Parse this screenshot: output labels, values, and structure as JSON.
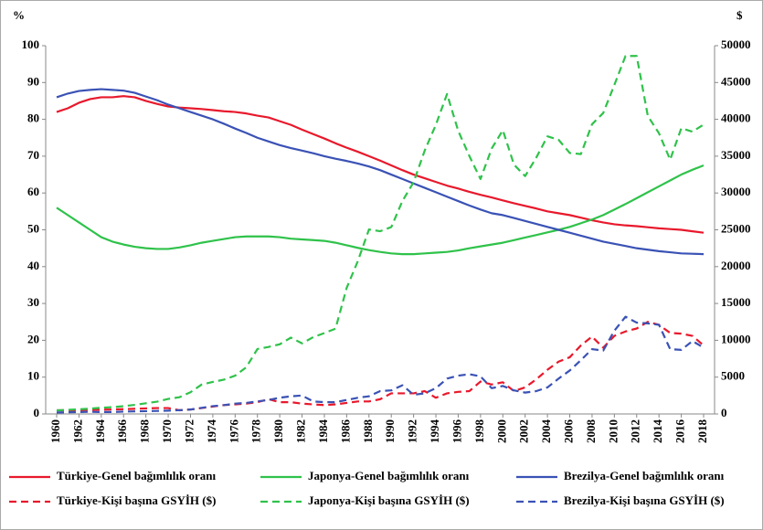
{
  "chart_data": {
    "type": "line",
    "y_label": "%",
    "y2_label": "$",
    "x": [
      1960,
      1961,
      1962,
      1963,
      1964,
      1965,
      1966,
      1967,
      1968,
      1969,
      1970,
      1971,
      1972,
      1973,
      1974,
      1975,
      1976,
      1977,
      1978,
      1979,
      1980,
      1981,
      1982,
      1983,
      1984,
      1985,
      1986,
      1987,
      1988,
      1989,
      1990,
      1991,
      1992,
      1993,
      1994,
      1995,
      1996,
      1997,
      1998,
      1999,
      2000,
      2001,
      2002,
      2003,
      2004,
      2005,
      2006,
      2007,
      2008,
      2009,
      2010,
      2011,
      2012,
      2013,
      2014,
      2015,
      2016,
      2017,
      2018
    ],
    "xlim": [
      1960,
      2018
    ],
    "xticks": [
      1960,
      1962,
      1964,
      1966,
      1968,
      1970,
      1972,
      1974,
      1976,
      1978,
      1980,
      1982,
      1984,
      1986,
      1988,
      1990,
      1992,
      1994,
      1996,
      1998,
      2000,
      2002,
      2004,
      2006,
      2008,
      2010,
      2012,
      2014,
      2016,
      2018
    ],
    "ylim": [
      0,
      100
    ],
    "yticks": [
      0,
      10,
      20,
      30,
      40,
      50,
      60,
      70,
      80,
      90,
      100
    ],
    "y2lim": [
      0,
      50000
    ],
    "y2ticks": [
      0,
      5000,
      10000,
      15000,
      20000,
      25000,
      30000,
      35000,
      40000,
      45000,
      50000
    ],
    "series": [
      {
        "name": "Türkiye-Genel bağımlılık oranı",
        "color": "#e8192c",
        "dash": false,
        "values": [
          82,
          83,
          84.5,
          85.5,
          86,
          86,
          86.3,
          86,
          85,
          84.2,
          83.5,
          83.2,
          83,
          82.8,
          82.5,
          82.2,
          82,
          81.6,
          81,
          80.5,
          79.5,
          78.5,
          77.2,
          76,
          74.8,
          73.5,
          72.3,
          71.2,
          70,
          68.8,
          67.5,
          66.2,
          65,
          64,
          63,
          62,
          61.2,
          60.3,
          59.5,
          58.8,
          58,
          57.2,
          56.5,
          55.8,
          55,
          54.5,
          54,
          53.3,
          52.6,
          52,
          51.5,
          51.2,
          51,
          50.7,
          50.4,
          50.2,
          50,
          49.6,
          49.2
        ]
      },
      {
        "name": "Japonya-Genel bağımlılık oranı",
        "color": "#2fc24a",
        "dash": false,
        "values": [
          56,
          54,
          52,
          50,
          48,
          46.8,
          46,
          45.4,
          45,
          44.8,
          44.8,
          45.2,
          45.8,
          46.5,
          47,
          47.5,
          48,
          48.2,
          48.2,
          48.2,
          48,
          47.6,
          47.4,
          47.2,
          47,
          46.5,
          45.8,
          45.1,
          44.5,
          44,
          43.6,
          43.4,
          43.4,
          43.6,
          43.8,
          44,
          44.4,
          45,
          45.5,
          46,
          46.5,
          47.2,
          47.9,
          48.6,
          49.3,
          50,
          50.8,
          51.8,
          52.8,
          54,
          55.5,
          57,
          58.6,
          60.2,
          61.8,
          63.4,
          65,
          66.3,
          67.5
        ]
      },
      {
        "name": "Brezilya-Genel bağımlılık oranı",
        "color": "#3a52b5",
        "dash": false,
        "values": [
          86,
          87,
          87.7,
          88,
          88.2,
          88,
          87.8,
          87.2,
          86.2,
          85.2,
          84,
          83,
          82,
          81,
          80,
          78.8,
          77.5,
          76.3,
          75,
          74,
          73,
          72.2,
          71.5,
          70.8,
          70,
          69.3,
          68.7,
          68,
          67.2,
          66.2,
          65,
          63.8,
          62.6,
          61.4,
          60.2,
          59,
          57.8,
          56.6,
          55.5,
          54.5,
          54,
          53.2,
          52.4,
          51.6,
          50.8,
          50,
          49.2,
          48.4,
          47.6,
          46.8,
          46.2,
          45.6,
          45,
          44.6,
          44.2,
          43.9,
          43.6,
          43.5,
          43.4
        ]
      },
      {
        "name": "Türkiye-Kişi başına GSYİH ($)",
        "color": "#e8192c",
        "dash": true,
        "axis": "y2",
        "values": [
          500,
          500,
          500,
          550,
          580,
          600,
          650,
          700,
          750,
          800,
          800,
          500,
          600,
          800,
          1000,
          1200,
          1300,
          1400,
          1600,
          2000,
          1600,
          1600,
          1400,
          1300,
          1200,
          1300,
          1500,
          1700,
          1700,
          2000,
          2800,
          2800,
          2800,
          3100,
          2200,
          2800,
          3000,
          3100,
          4400,
          4000,
          4300,
          3100,
          3600,
          4700,
          6000,
          7100,
          7700,
          9300,
          10500,
          9000,
          10600,
          11200,
          11600,
          12500,
          12100,
          11000,
          10900,
          10600,
          9300
        ]
      },
      {
        "name": "Japonya-Kişi başına GSYİH ($)",
        "color": "#2fc24a",
        "dash": true,
        "axis": "y2",
        "values": [
          480,
          560,
          630,
          720,
          840,
          920,
          1060,
          1230,
          1450,
          1670,
          2040,
          2270,
          2950,
          3990,
          4350,
          4660,
          5200,
          6340,
          8820,
          9100,
          9460,
          10360,
          9580,
          10430,
          10980,
          11580,
          17110,
          20750,
          25050,
          24810,
          25370,
          28920,
          31460,
          35770,
          39270,
          43440,
          38440,
          35020,
          31900,
          36030,
          38530,
          33850,
          32290,
          34810,
          37690,
          37220,
          35430,
          35280,
          39340,
          40860,
          44670,
          48600,
          48600,
          40450,
          38110,
          34520,
          38790,
          38330,
          39290
        ]
      },
      {
        "name": "Brezilya-Kişi başına GSYİH ($)",
        "color": "#3a52b5",
        "dash": true,
        "axis": "y2",
        "values": [
          200,
          230,
          260,
          290,
          260,
          260,
          320,
          350,
          380,
          410,
          450,
          510,
          600,
          830,
          1060,
          1200,
          1400,
          1500,
          1700,
          1900,
          2200,
          2400,
          2500,
          1700,
          1600,
          1600,
          1900,
          2200,
          2400,
          3100,
          3200,
          3900,
          2600,
          2800,
          3500,
          4800,
          5200,
          5400,
          5100,
          3500,
          3800,
          3200,
          2900,
          3100,
          3600,
          4800,
          5900,
          7300,
          8800,
          8600,
          11300,
          13200,
          12400,
          12300,
          12100,
          8800,
          8700,
          9900,
          9000
        ]
      }
    ],
    "grid": false
  }
}
